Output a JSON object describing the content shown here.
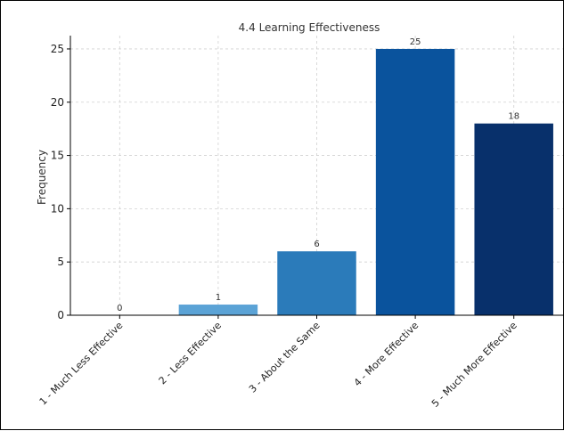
{
  "chart_data": {
    "type": "bar",
    "title": "4.4 Learning Effectiveness",
    "xlabel": "",
    "ylabel": "Frequency",
    "categories": [
      "1 - Much Less Effective",
      "2 - Less Effective",
      "3 - About the Same",
      "4 - More Effective",
      "5 - Much More Effective"
    ],
    "values": [
      0,
      1,
      6,
      25,
      18
    ],
    "data_labels": [
      "0",
      "1",
      "6",
      "25",
      "18"
    ],
    "colors": [
      "#cfe1f2",
      "#5ba3d6",
      "#2b7bba",
      "#0a539d",
      "#08306b"
    ],
    "ylim": [
      0,
      26.25
    ],
    "yticks": [
      0,
      5,
      10,
      15,
      20,
      25
    ],
    "grid": true,
    "legend": "none"
  }
}
